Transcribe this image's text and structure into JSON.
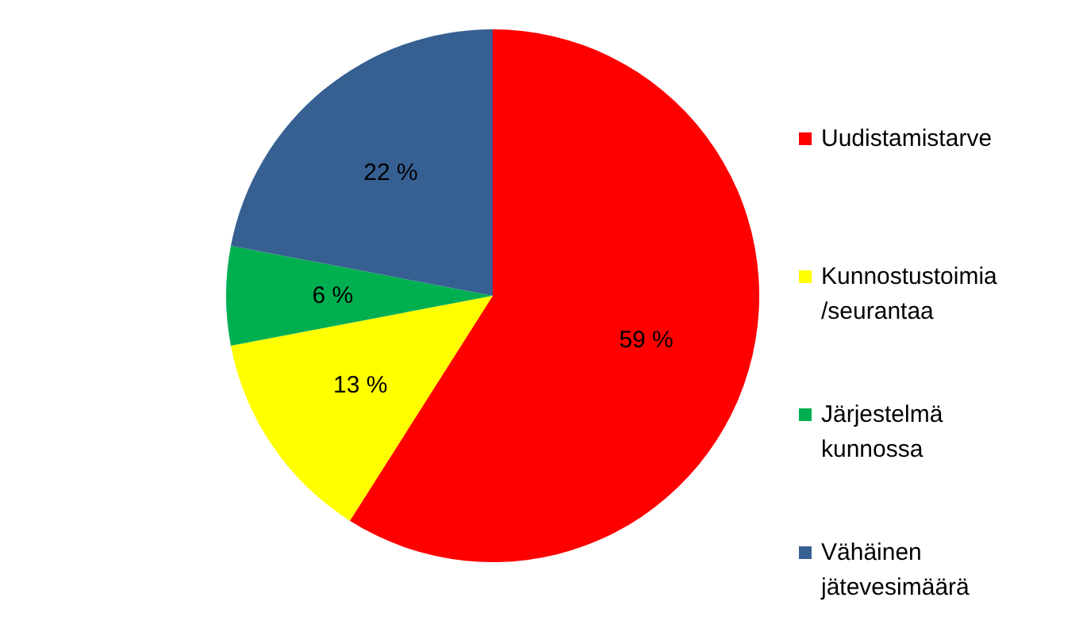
{
  "chart_data": {
    "type": "pie",
    "categories": [
      "Uudistamistarve",
      "Kunnostustoimia\n/seurantaa",
      "Järjestelmä\nkunnossa",
      "Vähäinen\njätevesimäärä"
    ],
    "values": [
      59,
      13,
      6,
      22
    ],
    "colors": [
      "#ff0000",
      "#ffff00",
      "#00b050",
      "#376092"
    ],
    "value_labels": [
      "59 %",
      "13 %",
      "6 %",
      "22 %"
    ],
    "legend": "right"
  }
}
